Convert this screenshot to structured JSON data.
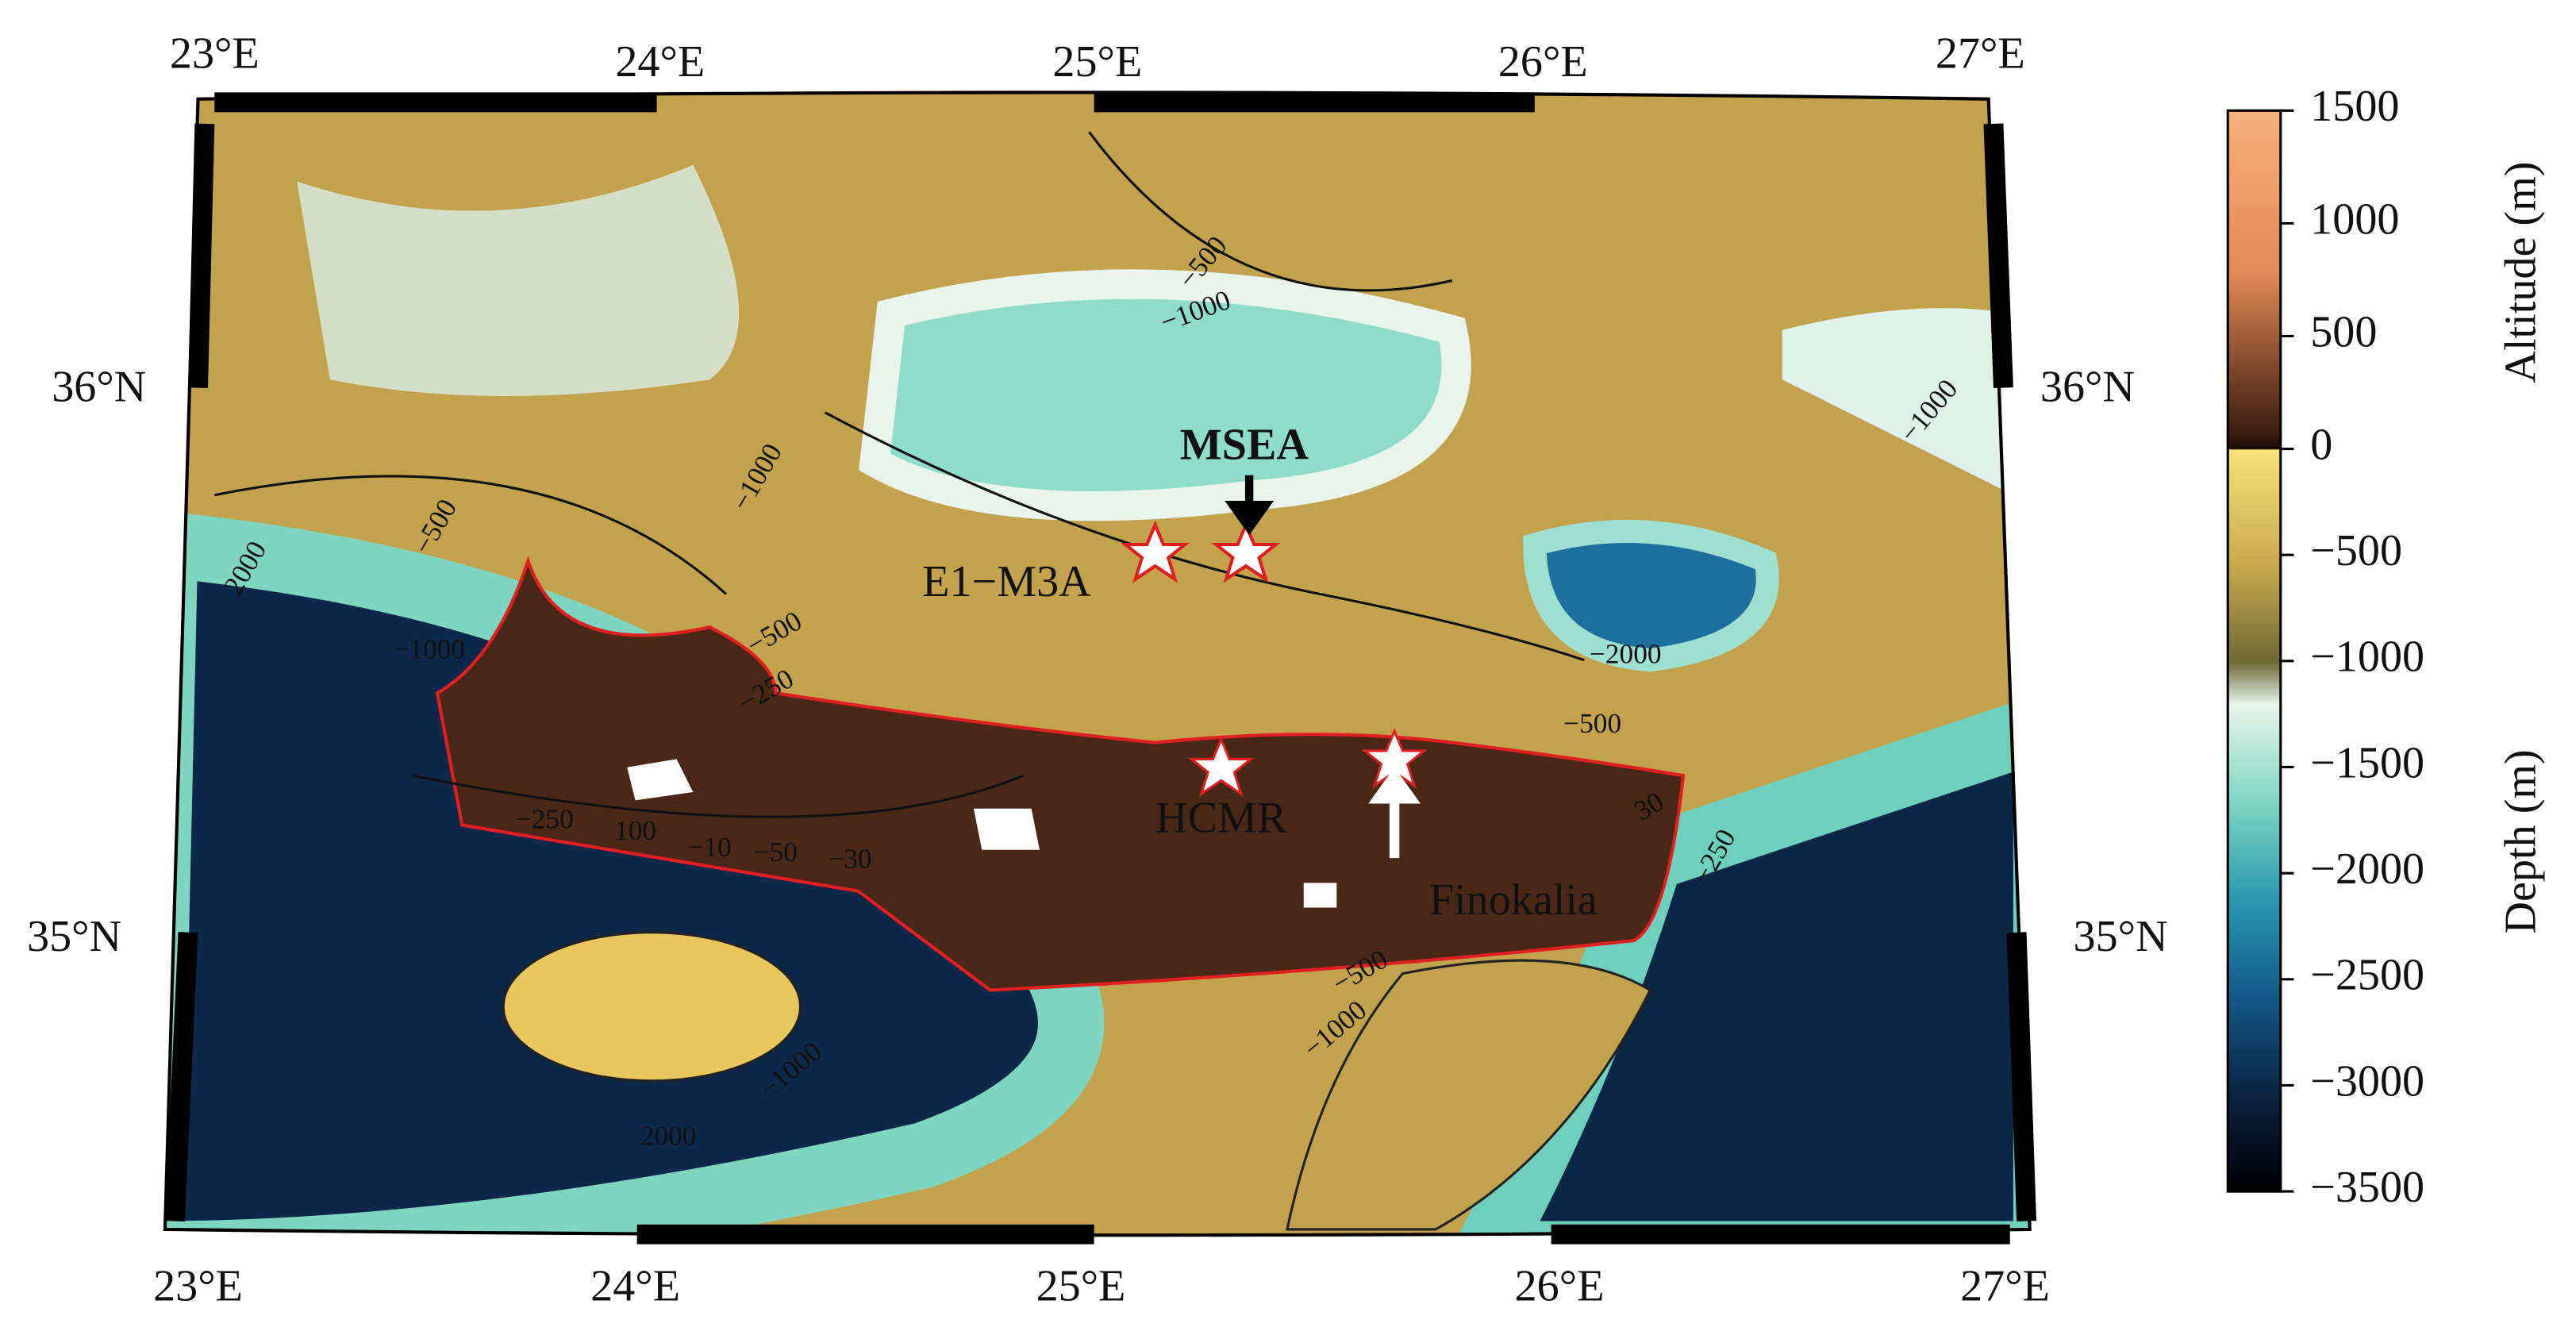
{
  "map": {
    "lon_labels_top": [
      "23°E",
      "24°E",
      "25°E",
      "26°E",
      "27°E"
    ],
    "lon_labels_bottom": [
      "23°E",
      "24°E",
      "25°E",
      "26°E",
      "27°E"
    ],
    "lat_labels_left": [
      "36°N",
      "35°N"
    ],
    "lat_labels_right": [
      "36°N",
      "35°N"
    ],
    "stations": [
      "MSEA",
      "E1−M3A",
      "HCMR",
      "Finokalia"
    ],
    "contour_labels": [
      "−500",
      "−1000",
      "2000",
      "−1000",
      "−500",
      "−250",
      "−2000",
      "−500",
      "−250",
      "100",
      "−10",
      "−50",
      "−30",
      "−1000",
      "−500",
      "−1000",
      "−1000",
      "2000",
      "−500",
      "−1000",
      "−250",
      "30"
    ]
  },
  "colorbar": {
    "altitude": {
      "label": "Altitude (m)",
      "lim": [
        0,
        1500
      ],
      "ticks": [
        0,
        500,
        1000,
        1500
      ]
    },
    "depth": {
      "label": "Depth (m)",
      "lim": [
        -3500,
        0
      ],
      "ticks": [
        {
          "value": -500,
          "label": "−500"
        },
        {
          "value": -1000,
          "label": "−1000"
        },
        {
          "value": -1500,
          "label": "−1500"
        },
        {
          "value": -2000,
          "label": "−2000"
        },
        {
          "value": -2500,
          "label": "−2500"
        },
        {
          "value": -3000,
          "label": "−3000"
        },
        {
          "value": -3500,
          "label": "−3500"
        }
      ]
    }
  }
}
